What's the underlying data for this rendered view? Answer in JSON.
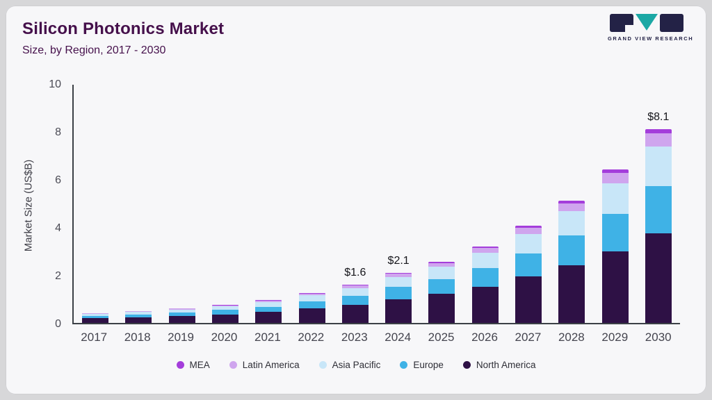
{
  "header": {
    "title": "Silicon Photonics Market",
    "subtitle": "Size, by Region, 2017 - 2030",
    "logo_text": "GRAND VIEW RESEARCH"
  },
  "colors": {
    "title": "#45104b",
    "card_bg": "#f7f7f9",
    "outer_bg": "#d7d7d9",
    "axis": "#3b4046",
    "logo_dark": "#232246",
    "logo_teal": "#1ba8a5"
  },
  "chart_data": {
    "type": "bar",
    "stacked": true,
    "title": "Silicon Photonics Market Size, by Region, 2017 - 2030",
    "xlabel": "",
    "ylabel": "Market Size (US$B)",
    "ylim": [
      0,
      10
    ],
    "ytick_step": 2,
    "grid": false,
    "legend_position": "bottom",
    "categories": [
      "2017",
      "2018",
      "2019",
      "2020",
      "2021",
      "2022",
      "2023",
      "2024",
      "2025",
      "2026",
      "2027",
      "2028",
      "2029",
      "2030"
    ],
    "series": [
      {
        "name": "North America",
        "color": "#2e1145",
        "values": [
          0.19,
          0.24,
          0.29,
          0.36,
          0.45,
          0.6,
          0.76,
          1.0,
          1.22,
          1.52,
          1.93,
          2.42,
          3.0,
          3.75
        ]
      },
      {
        "name": "Europe",
        "color": "#3fb2e6",
        "values": [
          0.1,
          0.12,
          0.15,
          0.18,
          0.23,
          0.3,
          0.38,
          0.5,
          0.61,
          0.77,
          0.97,
          1.22,
          1.55,
          1.95
        ]
      },
      {
        "name": "Asia Pacific",
        "color": "#c8e6f8",
        "values": [
          0.08,
          0.1,
          0.12,
          0.15,
          0.19,
          0.25,
          0.32,
          0.42,
          0.51,
          0.64,
          0.81,
          1.02,
          1.28,
          1.65
        ]
      },
      {
        "name": "Latin America",
        "color": "#cfa5ee",
        "values": [
          0.025,
          0.03,
          0.04,
          0.05,
          0.06,
          0.08,
          0.1,
          0.13,
          0.16,
          0.2,
          0.26,
          0.32,
          0.42,
          0.55
        ]
      },
      {
        "name": "MEA",
        "color": "#a43ddb",
        "values": [
          0.01,
          0.01,
          0.015,
          0.02,
          0.02,
          0.03,
          0.04,
          0.05,
          0.06,
          0.07,
          0.09,
          0.11,
          0.15,
          0.2
        ]
      }
    ],
    "annotations": [
      {
        "category": "2023",
        "label": "$1.6"
      },
      {
        "category": "2024",
        "label": "$2.1"
      },
      {
        "category": "2030",
        "label": "$8.1"
      }
    ],
    "legend": [
      "MEA",
      "Latin America",
      "Asia Pacific",
      "Europe",
      "North America"
    ]
  }
}
